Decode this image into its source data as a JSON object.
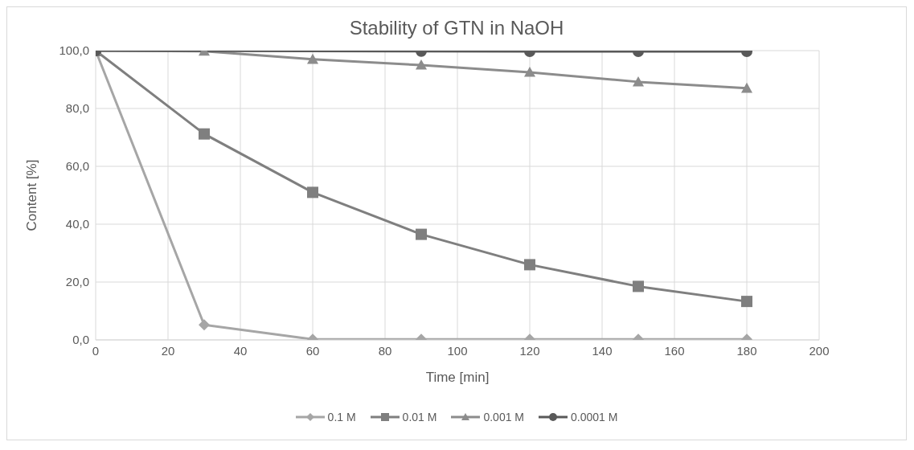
{
  "chart_data": {
    "type": "line",
    "title": "Stability of GTN in NaOH",
    "xlabel": "Time [min]",
    "ylabel": "Content [%]",
    "x": [
      0,
      30,
      60,
      90,
      120,
      150,
      180
    ],
    "series": [
      {
        "name": "0.1 M",
        "color": "#a6a6a6",
        "marker": "diamond",
        "values": [
          100,
          5.2,
          0.2,
          0.2,
          0.2,
          0.2,
          0.2
        ]
      },
      {
        "name": "0.01 M",
        "color": "#7f7f7f",
        "marker": "square",
        "values": [
          100,
          71.2,
          51,
          36.5,
          26,
          18.5,
          13.3
        ]
      },
      {
        "name": "0.001 M",
        "color": "#8c8c8c",
        "marker": "triangle",
        "values": [
          100,
          99.8,
          97,
          95,
          92.5,
          89.2,
          87
        ]
      },
      {
        "name": "0.0001 M",
        "color": "#595959",
        "marker": "circle",
        "x": [
          0,
          90,
          120,
          150,
          180
        ],
        "values": [
          100,
          99.8,
          99.7,
          99.7,
          99.7
        ]
      }
    ],
    "xlim": [
      0,
      200
    ],
    "xticks": [
      0,
      20,
      40,
      60,
      80,
      100,
      120,
      140,
      160,
      180,
      200
    ],
    "ylim": [
      0,
      100
    ],
    "yticks": [
      {
        "value": 0,
        "label": "0,0"
      },
      {
        "value": 20,
        "label": "20,0"
      },
      {
        "value": 40,
        "label": "40,0"
      },
      {
        "value": 60,
        "label": "60,0"
      },
      {
        "value": 80,
        "label": "80,0"
      },
      {
        "value": 100,
        "label": "100,0"
      }
    ],
    "grid": true,
    "legend": "bottom",
    "line_style": "solid"
  }
}
